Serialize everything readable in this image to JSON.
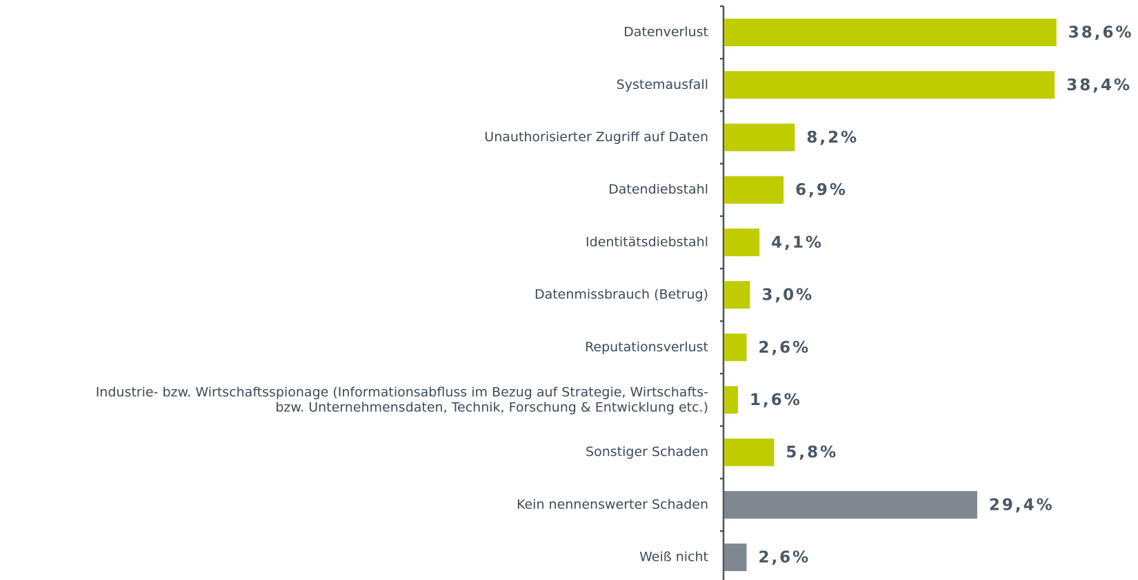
{
  "chart_data": {
    "type": "bar",
    "orientation": "horizontal",
    "categories": [
      "Datenverlust",
      "Systemausfall",
      "Unauthorisierter Zugriff auf Daten",
      "Datendiebstahl",
      "Identitätsdiebstahl",
      "Datenmissbrauch (Betrug)",
      "Reputationsverlust",
      "Industrie- bzw. Wirtschaftsspionage (Informationsabfluss im Bezug auf Strategie, Wirtschafts-\nbzw. Unternehmensdaten, Technik, Forschung & Entwicklung etc.)",
      "Sonstiger Schaden",
      "Kein nennenswerter Schaden",
      "Weiß nicht"
    ],
    "values": [
      38.6,
      38.4,
      8.2,
      6.9,
      4.1,
      3.0,
      2.6,
      1.6,
      5.8,
      29.4,
      2.6
    ],
    "value_labels": [
      "38,6%",
      "38,4%",
      "8,2%",
      "6,9%",
      "4,1%",
      "3,0%",
      "2,6%",
      "1,6%",
      "5,8%",
      "29,4%",
      "2,6%"
    ],
    "colors": [
      "#bfcc00",
      "#bfcc00",
      "#bfcc00",
      "#bfcc00",
      "#bfcc00",
      "#bfcc00",
      "#bfcc00",
      "#bfcc00",
      "#bfcc00",
      "#80878f",
      "#80878f"
    ]
  }
}
